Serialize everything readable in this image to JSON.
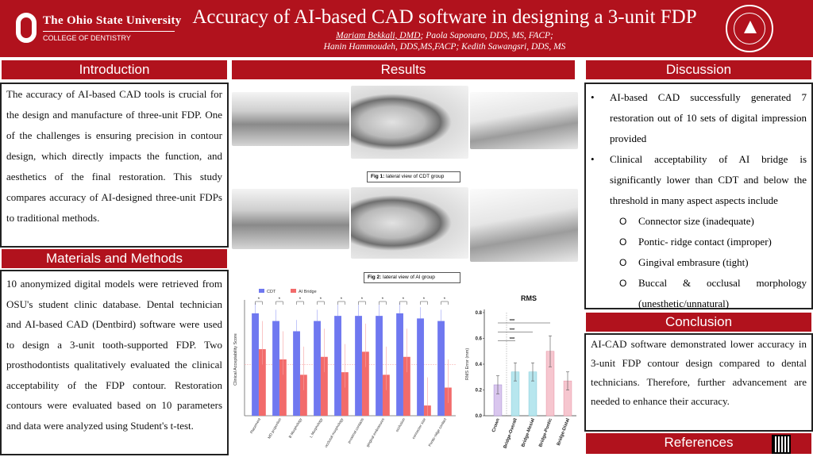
{
  "header": {
    "university": "The Ohio State University",
    "college": "COLLEGE OF DENTISTRY",
    "title": "Accuracy of AI-based CAD software in designing a 3-unit FDP",
    "author_presenter": "Mariam Bekkali, DMD",
    "authors_line1_rest": "; Paola Saponaro, DDS, MS, FACP;",
    "authors_line2": "Hanin Hammoudeh, DDS,MS,FACP; Kedith Sawangsri, DDS, MS"
  },
  "introduction": {
    "heading": "Introduction",
    "text": "The accuracy of AI-based CAD tools is crucial for the design and manufacture of three-unit FDP. One of the challenges is ensuring precision in contour design, which directly impacts the function, and aesthetics of the final restoration. This study compares accuracy of AI-designed three-unit FDPs to traditional methods."
  },
  "methods": {
    "heading": "Materials and Methods",
    "text": "10 anonymized digital models were retrieved from OSU's student clinic database. Dental technician and AI-based CAD (Dentbird) software were used to design a 3-unit tooth-supported FDP. Two prosthodontists qualitatively evaluated the clinical acceptability of the FDP contour. Restoration contours were evaluated based on 10 parameters and data were analyzed using Student's t-test."
  },
  "results": {
    "heading": "Results",
    "fig1_label": "Fig 1:",
    "fig1_caption": " lateral view of CDT group",
    "fig2_label": "Fig 2:",
    "fig2_caption": " lateral view of AI group"
  },
  "discussion": {
    "heading": "Discussion",
    "bullets": [
      "AI-based CAD successfully generated 7 restoration out of 10 sets of digital impression provided",
      "Clinical acceptability of AI bridge is significantly lower than CDT and below the threshold in many aspect aspects include"
    ],
    "sub_items": [
      "Connector size (inadequate)",
      "Pontic- ridge contact (improper)",
      "Gingival embrasure (tight)",
      "Buccal & occlusal morphology (unesthetic/unnatural)"
    ]
  },
  "conclusion": {
    "heading": "Conclusion",
    "text": "AI-CAD software demonstrated lower accuracy in 3-unit FDP contour design compared to dental technicians. Therefore, further advancement are needed to enhance their accuracy."
  },
  "references": {
    "heading": "References"
  },
  "colors": {
    "brand_red": "#b1121d",
    "cdt_blue": "#6f78f0",
    "ai_red": "#f26b6b"
  },
  "chart_data": [
    {
      "type": "bar",
      "title": "",
      "xlabel": "",
      "ylabel": "Clinical Acceptability Score",
      "ylim": [
        0,
        2.2
      ],
      "categories": [
        "Placement",
        "MD proportion",
        "B Morphology",
        "L Morphology",
        "occlusal morphology",
        "proximal contacts",
        "gingival embrasures",
        "occlusion",
        "connector size",
        "Pontic-ridge contact"
      ],
      "series": [
        {
          "name": "CDT",
          "values": [
            2.0,
            1.85,
            1.65,
            1.85,
            1.95,
            1.95,
            1.95,
            2.0,
            1.9,
            1.85
          ]
        },
        {
          "name": "AI Bridge",
          "values": [
            1.3,
            1.1,
            0.8,
            1.15,
            0.85,
            1.25,
            0.8,
            1.15,
            0.2,
            0.55
          ]
        }
      ],
      "significance": [
        "*",
        "*",
        "*",
        "*",
        "*",
        "*",
        "*",
        "*",
        "*",
        "*"
      ],
      "legend_position": "top",
      "grid": false
    },
    {
      "type": "bar",
      "title": "RMS",
      "xlabel": "",
      "ylabel": "RMS Error (mm)",
      "ylim": [
        0,
        0.8
      ],
      "yticks": [
        "0.0",
        "0.2",
        "0.4",
        "0.6",
        "0.8"
      ],
      "categories": [
        "Crown",
        "Bridge-Overall",
        "Bridge-Mesial",
        "Bridge-Pontic",
        "Bridge-Distal"
      ],
      "values": [
        0.24,
        0.34,
        0.34,
        0.5,
        0.27
      ],
      "significance": [
        "***",
        "***",
        "***"
      ],
      "grid": false
    }
  ]
}
